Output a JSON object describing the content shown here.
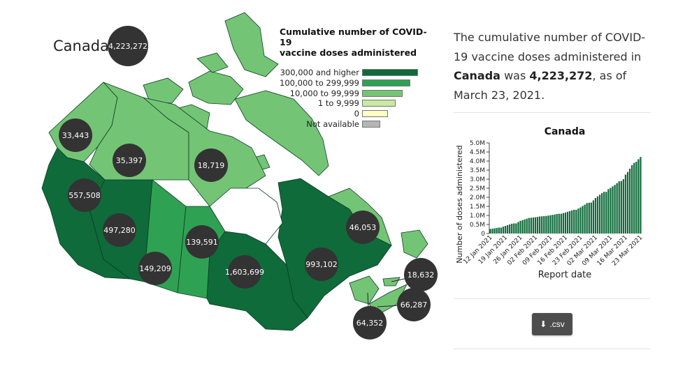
{
  "map": {
    "country_label": "Canada",
    "total_bubble": "4,223,272",
    "legend": {
      "title_line1": "Cumulative number of COVID-19",
      "title_line2": "vaccine doses administered",
      "items": [
        {
          "label": "300,000 and higher",
          "color": "#0f6b3a",
          "width_frac": 1.0
        },
        {
          "label": "100,000 to 299,999",
          "color": "#2fa153",
          "width_frac": 0.86
        },
        {
          "label": "10,000 to 99,999",
          "color": "#74c476",
          "width_frac": 0.72
        },
        {
          "label": "1 to 9,999",
          "color": "#c7e9a2",
          "width_frac": 0.6
        },
        {
          "label": "0",
          "color": "#ffffc4",
          "width_frac": 0.46
        },
        {
          "label": "Not available",
          "color": "#b5b5b5",
          "width_frac": 0.32
        }
      ]
    },
    "regions": [
      {
        "name": "Yukon",
        "value": "33,443",
        "color": "#74c476"
      },
      {
        "name": "Northwest Territories",
        "value": "35,397",
        "color": "#74c476"
      },
      {
        "name": "Nunavut",
        "value": "18,719",
        "color": "#74c476"
      },
      {
        "name": "British Columbia",
        "value": "557,508",
        "color": "#0f6b3a"
      },
      {
        "name": "Alberta",
        "value": "497,280",
        "color": "#0f6b3a"
      },
      {
        "name": "Saskatchewan",
        "value": "149,209",
        "color": "#2fa153"
      },
      {
        "name": "Manitoba",
        "value": "139,591",
        "color": "#2fa153"
      },
      {
        "name": "Ontario",
        "value": "1,603,699",
        "color": "#0f6b3a"
      },
      {
        "name": "Quebec",
        "value": "993,102",
        "color": "#0f6b3a"
      },
      {
        "name": "Newfoundland and Labrador",
        "value": "46,053",
        "color": "#74c476"
      },
      {
        "name": "Prince Edward Island",
        "value": "18,632",
        "color": "#74c476"
      },
      {
        "name": "Nova Scotia",
        "value": "66,287",
        "color": "#74c476"
      },
      {
        "name": "New Brunswick",
        "value": "64,352",
        "color": "#74c476"
      }
    ]
  },
  "summary": {
    "prefix": "The cumulative number of COVID-19 vaccine doses administered in ",
    "place": "Canada",
    "middle": " was ",
    "value": "4,223,272",
    "suffix": ", as of March 23, 2021."
  },
  "download": {
    "label": ".csv",
    "icon": "download-icon"
  },
  "chart_data": {
    "type": "bar",
    "title": "Canada",
    "xlabel": "Report date",
    "ylabel": "Number of doses administered",
    "ylim": [
      0,
      5000000
    ],
    "yticks": [
      "0",
      "0.5M",
      "1.0M",
      "1.5M",
      "2.0M",
      "2.5M",
      "3.0M",
      "3.5M",
      "4.0M",
      "4.5M",
      "5.0M"
    ],
    "xticks": [
      "12 Jan 2021",
      "19 Jan 2021",
      "26 Jan 2021",
      "02 Feb 2021",
      "09 Feb 2021",
      "16 Feb 2021",
      "23 Feb 2021",
      "02 Mar 2021",
      "09 Mar 2021",
      "16 Mar 2021",
      "23 Mar 2021"
    ],
    "bar_color": "#0f6b3a",
    "categories": [
      "12 Jan 2021",
      "13 Jan 2021",
      "14 Jan 2021",
      "15 Jan 2021",
      "16 Jan 2021",
      "17 Jan 2021",
      "18 Jan 2021",
      "19 Jan 2021",
      "20 Jan 2021",
      "21 Jan 2021",
      "22 Jan 2021",
      "23 Jan 2021",
      "24 Jan 2021",
      "25 Jan 2021",
      "26 Jan 2021",
      "27 Jan 2021",
      "28 Jan 2021",
      "29 Jan 2021",
      "30 Jan 2021",
      "31 Jan 2021",
      "01 Feb 2021",
      "02 Feb 2021",
      "03 Feb 2021",
      "04 Feb 2021",
      "05 Feb 2021",
      "06 Feb 2021",
      "07 Feb 2021",
      "08 Feb 2021",
      "09 Feb 2021",
      "10 Feb 2021",
      "11 Feb 2021",
      "12 Feb 2021",
      "13 Feb 2021",
      "14 Feb 2021",
      "15 Feb 2021",
      "16 Feb 2021",
      "17 Feb 2021",
      "18 Feb 2021",
      "19 Feb 2021",
      "20 Feb 2021",
      "21 Feb 2021",
      "22 Feb 2021",
      "23 Feb 2021",
      "24 Feb 2021",
      "25 Feb 2021",
      "26 Feb 2021",
      "27 Feb 2021",
      "28 Feb 2021",
      "01 Mar 2021",
      "02 Mar 2021",
      "03 Mar 2021",
      "04 Mar 2021",
      "05 Mar 2021",
      "06 Mar 2021",
      "07 Mar 2021",
      "08 Mar 2021",
      "09 Mar 2021",
      "10 Mar 2021",
      "11 Mar 2021",
      "12 Mar 2021",
      "13 Mar 2021",
      "14 Mar 2021",
      "15 Mar 2021",
      "16 Mar 2021",
      "17 Mar 2021",
      "18 Mar 2021",
      "19 Mar 2021",
      "20 Mar 2021",
      "21 Mar 2021",
      "22 Mar 2021",
      "23 Mar 2021"
    ],
    "values": [
      250000,
      270000,
      290000,
      310000,
      330000,
      330000,
      380000,
      420000,
      460000,
      500000,
      540000,
      560000,
      560000,
      640000,
      700000,
      740000,
      780000,
      820000,
      860000,
      870000,
      890000,
      900000,
      920000,
      940000,
      950000,
      960000,
      970000,
      990000,
      1010000,
      1030000,
      1050000,
      1080000,
      1090000,
      1090000,
      1130000,
      1160000,
      1200000,
      1240000,
      1280000,
      1310000,
      1310000,
      1380000,
      1440000,
      1520000,
      1590000,
      1680000,
      1700000,
      1710000,
      1830000,
      1960000,
      2050000,
      2140000,
      2230000,
      2300000,
      2300000,
      2450000,
      2520000,
      2600000,
      2680000,
      2780000,
      2880000,
      2900000,
      3000000,
      3250000,
      3400000,
      3580000,
      3770000,
      3900000,
      3960000,
      4100000,
      4223272
    ]
  }
}
